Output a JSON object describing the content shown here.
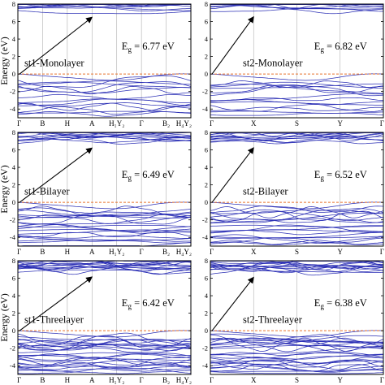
{
  "chart_data": [
    {
      "type": "line",
      "title": "st1-Monolayer",
      "ylabel": "Energy (eV)",
      "ylim": [
        -5,
        8
      ],
      "yticks": [
        -4,
        -2,
        0,
        2,
        4,
        6,
        8
      ],
      "kpoints": [
        "Γ",
        "B",
        "H",
        "A",
        "H₁Y₂",
        "Γ",
        "B₂",
        "H₄Y₂"
      ],
      "band_gap": "E",
      "gap_sub": "g",
      "gap_value": " = 6.77 eV",
      "vbm": {
        "k": "Γ",
        "energy": 0.0
      },
      "cbm": {
        "k": "A",
        "energy": 6.77
      },
      "fermi_level": 0.0
    },
    {
      "type": "line",
      "title": "st2-Monolayer",
      "ylabel": "",
      "ylim": [
        -5,
        8
      ],
      "yticks": [
        -4,
        -2,
        0,
        2,
        4,
        6,
        8
      ],
      "kpoints": [
        "Γ",
        "X",
        "S",
        "Y",
        "Γ"
      ],
      "band_gap": "E",
      "gap_sub": "g",
      "gap_value": " = 6.82 eV",
      "vbm": {
        "k": "Γ",
        "energy": 0.0
      },
      "cbm": {
        "k": "X",
        "energy": 6.82
      },
      "fermi_level": 0.0
    },
    {
      "type": "line",
      "title": "st1-Bilayer",
      "ylabel": "Energy (eV)",
      "ylim": [
        -5,
        8
      ],
      "yticks": [
        -4,
        -2,
        0,
        2,
        4,
        6,
        8
      ],
      "kpoints": [
        "Γ",
        "B",
        "H",
        "A",
        "H₁Y₂",
        "Γ",
        "B₂",
        "H₄Y₂"
      ],
      "band_gap": "E",
      "gap_sub": "g",
      "gap_value": " = 6.49 eV",
      "vbm": {
        "k": "Γ",
        "energy": 0.0
      },
      "cbm": {
        "k": "A",
        "energy": 6.49
      },
      "fermi_level": 0.0
    },
    {
      "type": "line",
      "title": "st2-Bilayer",
      "ylabel": "",
      "ylim": [
        -5,
        8
      ],
      "yticks": [
        -4,
        -2,
        0,
        2,
        4,
        6,
        8
      ],
      "kpoints": [
        "Γ",
        "X",
        "S",
        "Y",
        "Γ"
      ],
      "band_gap": "E",
      "gap_sub": "g",
      "gap_value": " = 6.52 eV",
      "vbm": {
        "k": "Γ",
        "energy": 0.0
      },
      "cbm": {
        "k": "X",
        "energy": 6.52
      },
      "fermi_level": 0.0
    },
    {
      "type": "line",
      "title": "st1-Threelayer",
      "ylabel": "Energy (eV)",
      "ylim": [
        -5,
        8
      ],
      "yticks": [
        -4,
        -2,
        0,
        2,
        4,
        6,
        8
      ],
      "kpoints": [
        "Γ",
        "B",
        "H",
        "A",
        "H₁Y₂",
        "Γ",
        "B₂",
        "H₄Y₂"
      ],
      "band_gap": "E",
      "gap_sub": "g",
      "gap_value": " = 6.42 eV",
      "vbm": {
        "k": "Γ",
        "energy": 0.0
      },
      "cbm": {
        "k": "A",
        "energy": 6.42
      },
      "fermi_level": 0.0
    },
    {
      "type": "line",
      "title": "st2-Threelayer",
      "ylabel": "",
      "ylim": [
        -5,
        8
      ],
      "yticks": [
        -4,
        -2,
        0,
        2,
        4,
        6,
        8
      ],
      "kpoints": [
        "Γ",
        "X",
        "S",
        "Y",
        "Γ"
      ],
      "band_gap": "E",
      "gap_sub": "g",
      "gap_value": " = 6.38 eV",
      "vbm": {
        "k": "Γ",
        "energy": 0.0
      },
      "cbm": {
        "k": "X",
        "energy": 6.38
      },
      "fermi_level": 0.0
    }
  ],
  "colors": {
    "bands": "#2b2fb5",
    "fermi": "#e8742c",
    "frame": "#000000",
    "arrow": "#000000",
    "vline": "#b0b0b0"
  }
}
